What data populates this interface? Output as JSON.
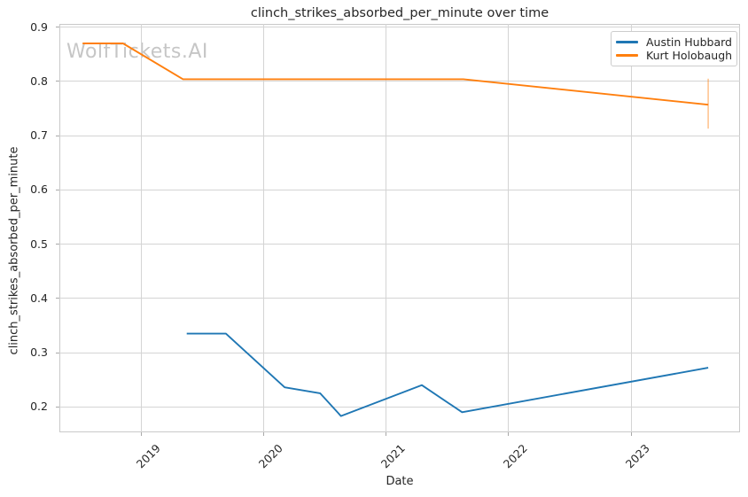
{
  "watermark": "WolfTickets.AI",
  "colors": {
    "series_blue": "#1f77b4",
    "series_orange": "#ff7f0e",
    "grid": "#d4d4d4",
    "spine": "#c9c9c9",
    "text": "#262626",
    "watermark": "#c6c6c6",
    "error_bar": "rgba(255,127,14,0.45)",
    "background": "#ffffff"
  },
  "chart_data": {
    "type": "line",
    "title": "clinch_strikes_absorbed_per_minute over time",
    "xlabel": "Date",
    "ylabel": "clinch_strikes_absorbed_per_minute",
    "grid": true,
    "legend_position": "upper right",
    "x_ticks": [
      "2019",
      "2020",
      "2021",
      "2022",
      "2023"
    ],
    "x_tick_values": [
      2019,
      2020,
      2021,
      2022,
      2023
    ],
    "y_ticks": [
      "0.9",
      "0.8",
      "0.7",
      "0.6",
      "0.5",
      "0.4",
      "0.3",
      "0.2"
    ],
    "y_tick_values": [
      0.9,
      0.8,
      0.7,
      0.6,
      0.5,
      0.4,
      0.3,
      0.2
    ],
    "xlim": [
      2018.33,
      2023.89
    ],
    "ylim": [
      0.153,
      0.906
    ],
    "series": [
      {
        "name": "Austin Hubbard",
        "color": "#1f77b4",
        "x": [
          2019.37,
          2019.69,
          2020.17,
          2020.46,
          2020.63,
          2021.29,
          2021.62,
          2023.63
        ],
        "y": [
          0.335,
          0.335,
          0.236,
          0.225,
          0.183,
          0.24,
          0.19,
          0.272
        ]
      },
      {
        "name": "Kurt Holobaugh",
        "color": "#ff7f0e",
        "x": [
          2018.52,
          2018.85,
          2019.34,
          2021.63,
          2023.63
        ],
        "y": [
          0.87,
          0.87,
          0.804,
          0.804,
          0.757
        ],
        "error_bar": {
          "x": 2023.63,
          "y_low": 0.713,
          "y_high": 0.805
        }
      }
    ]
  }
}
